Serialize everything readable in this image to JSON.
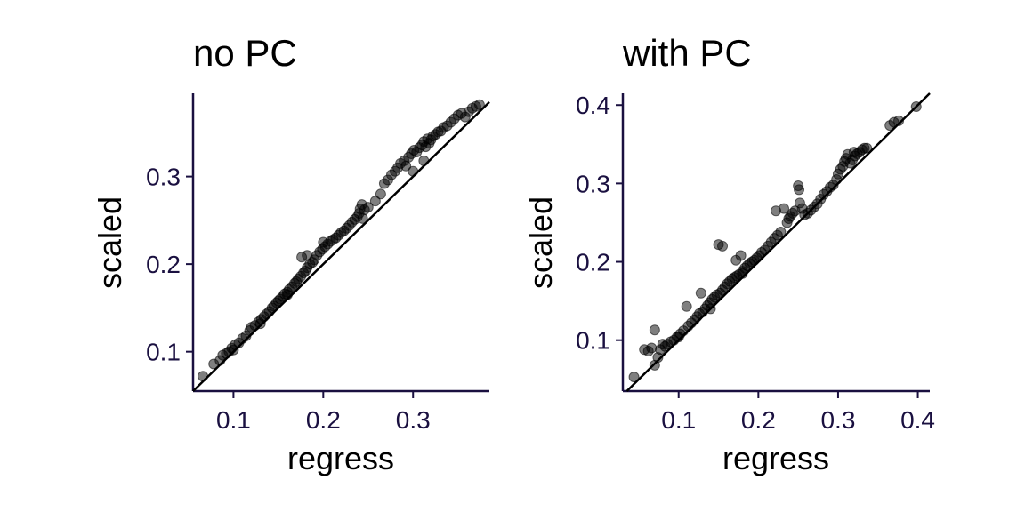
{
  "chart_data": [
    {
      "type": "scatter",
      "title": "no PC",
      "xlabel": "regress",
      "ylabel": "scaled",
      "xlim": [
        0.055,
        0.385
      ],
      "ylim": [
        0.055,
        0.395
      ],
      "xticks": [
        0.1,
        0.2,
        0.3
      ],
      "yticks": [
        0.1,
        0.2,
        0.3
      ],
      "xtick_labels": [
        "0.1",
        "0.2",
        "0.3"
      ],
      "ytick_labels": [
        "0.1",
        "0.2",
        "0.3"
      ],
      "reference_line": "y = x",
      "grid": false,
      "points": [
        [
          0.066,
          0.072
        ],
        [
          0.078,
          0.086
        ],
        [
          0.085,
          0.09
        ],
        [
          0.088,
          0.096
        ],
        [
          0.092,
          0.098
        ],
        [
          0.095,
          0.1
        ],
        [
          0.098,
          0.104
        ],
        [
          0.102,
          0.108
        ],
        [
          0.106,
          0.11
        ],
        [
          0.11,
          0.115
        ],
        [
          0.114,
          0.118
        ],
        [
          0.118,
          0.124
        ],
        [
          0.12,
          0.128
        ],
        [
          0.124,
          0.13
        ],
        [
          0.128,
          0.134
        ],
        [
          0.131,
          0.137
        ],
        [
          0.134,
          0.14
        ],
        [
          0.137,
          0.143
        ],
        [
          0.14,
          0.146
        ],
        [
          0.143,
          0.15
        ],
        [
          0.145,
          0.152
        ],
        [
          0.148,
          0.156
        ],
        [
          0.15,
          0.158
        ],
        [
          0.152,
          0.16
        ],
        [
          0.155,
          0.163
        ],
        [
          0.157,
          0.166
        ],
        [
          0.16,
          0.168
        ],
        [
          0.162,
          0.171
        ],
        [
          0.165,
          0.174
        ],
        [
          0.168,
          0.178
        ],
        [
          0.17,
          0.18
        ],
        [
          0.172,
          0.183
        ],
        [
          0.175,
          0.186
        ],
        [
          0.178,
          0.19
        ],
        [
          0.18,
          0.192
        ],
        [
          0.182,
          0.196
        ],
        [
          0.185,
          0.2
        ],
        [
          0.188,
          0.202
        ],
        [
          0.176,
          0.208
        ],
        [
          0.182,
          0.21
        ],
        [
          0.19,
          0.205
        ],
        [
          0.193,
          0.21
        ],
        [
          0.196,
          0.214
        ],
        [
          0.199,
          0.217
        ],
        [
          0.202,
          0.22
        ],
        [
          0.205,
          0.223
        ],
        [
          0.208,
          0.226
        ],
        [
          0.211,
          0.228
        ],
        [
          0.214,
          0.23
        ],
        [
          0.217,
          0.233
        ],
        [
          0.22,
          0.236
        ],
        [
          0.223,
          0.238
        ],
        [
          0.226,
          0.241
        ],
        [
          0.229,
          0.244
        ],
        [
          0.232,
          0.248
        ],
        [
          0.235,
          0.251
        ],
        [
          0.238,
          0.254
        ],
        [
          0.24,
          0.258
        ],
        [
          0.241,
          0.263
        ],
        [
          0.243,
          0.268
        ],
        [
          0.246,
          0.262
        ],
        [
          0.25,
          0.265
        ],
        [
          0.2,
          0.225
        ],
        [
          0.258,
          0.272
        ],
        [
          0.264,
          0.28
        ],
        [
          0.268,
          0.292
        ],
        [
          0.272,
          0.296
        ],
        [
          0.276,
          0.302
        ],
        [
          0.28,
          0.306
        ],
        [
          0.283,
          0.31
        ],
        [
          0.286,
          0.315
        ],
        [
          0.29,
          0.318
        ],
        [
          0.292,
          0.312
        ],
        [
          0.295,
          0.322
        ],
        [
          0.298,
          0.326
        ],
        [
          0.301,
          0.33
        ],
        [
          0.304,
          0.328
        ],
        [
          0.307,
          0.333
        ],
        [
          0.31,
          0.336
        ],
        [
          0.312,
          0.34
        ],
        [
          0.314,
          0.334
        ],
        [
          0.316,
          0.343
        ],
        [
          0.318,
          0.338
        ],
        [
          0.32,
          0.342
        ],
        [
          0.322,
          0.346
        ],
        [
          0.325,
          0.348
        ],
        [
          0.328,
          0.351
        ],
        [
          0.331,
          0.352
        ],
        [
          0.334,
          0.356
        ],
        [
          0.338,
          0.358
        ],
        [
          0.342,
          0.362
        ],
        [
          0.346,
          0.366
        ],
        [
          0.35,
          0.37
        ],
        [
          0.354,
          0.372
        ],
        [
          0.358,
          0.368
        ],
        [
          0.362,
          0.374
        ],
        [
          0.366,
          0.378
        ],
        [
          0.37,
          0.38
        ],
        [
          0.374,
          0.382
        ],
        [
          0.312,
          0.318
        ],
        [
          0.3,
          0.306
        ],
        [
          0.244,
          0.252
        ],
        [
          0.16,
          0.165
        ],
        [
          0.13,
          0.132
        ],
        [
          0.1,
          0.102
        ]
      ]
    },
    {
      "type": "scatter",
      "title": "with PC",
      "xlabel": "regress",
      "ylabel": "scaled",
      "xlim": [
        0.03,
        0.415
      ],
      "ylim": [
        0.035,
        0.415
      ],
      "xticks": [
        0.1,
        0.2,
        0.3,
        0.4
      ],
      "yticks": [
        0.1,
        0.2,
        0.3,
        0.4
      ],
      "xtick_labels": [
        "0.1",
        "0.2",
        "0.3",
        "0.4"
      ],
      "ytick_labels": [
        "0.1",
        "0.2",
        "0.3",
        "0.4"
      ],
      "reference_line": "y = x",
      "grid": false,
      "points": [
        [
          0.044,
          0.053
        ],
        [
          0.057,
          0.088
        ],
        [
          0.062,
          0.086
        ],
        [
          0.066,
          0.09
        ],
        [
          0.07,
          0.113
        ],
        [
          0.07,
          0.068
        ],
        [
          0.074,
          0.078
        ],
        [
          0.077,
          0.088
        ],
        [
          0.08,
          0.095
        ],
        [
          0.083,
          0.092
        ],
        [
          0.086,
          0.095
        ],
        [
          0.09,
          0.098
        ],
        [
          0.094,
          0.1
        ],
        [
          0.098,
          0.104
        ],
        [
          0.102,
          0.108
        ],
        [
          0.106,
          0.112
        ],
        [
          0.11,
          0.143
        ],
        [
          0.112,
          0.118
        ],
        [
          0.116,
          0.122
        ],
        [
          0.12,
          0.126
        ],
        [
          0.123,
          0.13
        ],
        [
          0.126,
          0.134
        ],
        [
          0.128,
          0.16
        ],
        [
          0.13,
          0.136
        ],
        [
          0.133,
          0.14
        ],
        [
          0.136,
          0.144
        ],
        [
          0.139,
          0.148
        ],
        [
          0.142,
          0.152
        ],
        [
          0.145,
          0.155
        ],
        [
          0.148,
          0.158
        ],
        [
          0.15,
          0.222
        ],
        [
          0.155,
          0.22
        ],
        [
          0.152,
          0.16
        ],
        [
          0.155,
          0.164
        ],
        [
          0.158,
          0.168
        ],
        [
          0.161,
          0.172
        ],
        [
          0.164,
          0.175
        ],
        [
          0.167,
          0.178
        ],
        [
          0.17,
          0.18
        ],
        [
          0.173,
          0.182
        ],
        [
          0.176,
          0.184
        ],
        [
          0.172,
          0.202
        ],
        [
          0.178,
          0.208
        ],
        [
          0.18,
          0.188
        ],
        [
          0.183,
          0.192
        ],
        [
          0.186,
          0.195
        ],
        [
          0.189,
          0.198
        ],
        [
          0.192,
          0.2
        ],
        [
          0.195,
          0.202
        ],
        [
          0.198,
          0.205
        ],
        [
          0.201,
          0.208
        ],
        [
          0.204,
          0.212
        ],
        [
          0.208,
          0.215
        ],
        [
          0.212,
          0.22
        ],
        [
          0.216,
          0.225
        ],
        [
          0.22,
          0.23
        ],
        [
          0.224,
          0.234
        ],
        [
          0.228,
          0.238
        ],
        [
          0.222,
          0.265
        ],
        [
          0.232,
          0.268
        ],
        [
          0.236,
          0.25
        ],
        [
          0.238,
          0.255
        ],
        [
          0.24,
          0.258
        ],
        [
          0.243,
          0.262
        ],
        [
          0.246,
          0.265
        ],
        [
          0.25,
          0.297
        ],
        [
          0.251,
          0.292
        ],
        [
          0.252,
          0.275
        ],
        [
          0.255,
          0.268
        ],
        [
          0.258,
          0.26
        ],
        [
          0.262,
          0.262
        ],
        [
          0.266,
          0.266
        ],
        [
          0.27,
          0.27
        ],
        [
          0.274,
          0.274
        ],
        [
          0.278,
          0.28
        ],
        [
          0.282,
          0.286
        ],
        [
          0.286,
          0.29
        ],
        [
          0.29,
          0.295
        ],
        [
          0.294,
          0.298
        ],
        [
          0.298,
          0.305
        ],
        [
          0.3,
          0.312
        ],
        [
          0.303,
          0.318
        ],
        [
          0.306,
          0.322
        ],
        [
          0.308,
          0.328
        ],
        [
          0.31,
          0.332
        ],
        [
          0.312,
          0.337
        ],
        [
          0.315,
          0.326
        ],
        [
          0.318,
          0.33
        ],
        [
          0.321,
          0.335
        ],
        [
          0.324,
          0.338
        ],
        [
          0.327,
          0.34
        ],
        [
          0.33,
          0.343
        ],
        [
          0.333,
          0.345
        ],
        [
          0.336,
          0.345
        ],
        [
          0.32,
          0.34
        ],
        [
          0.365,
          0.374
        ],
        [
          0.37,
          0.378
        ],
        [
          0.376,
          0.38
        ],
        [
          0.398,
          0.398
        ],
        [
          0.14,
          0.14
        ],
        [
          0.18,
          0.185
        ],
        [
          0.1,
          0.104
        ]
      ]
    }
  ]
}
